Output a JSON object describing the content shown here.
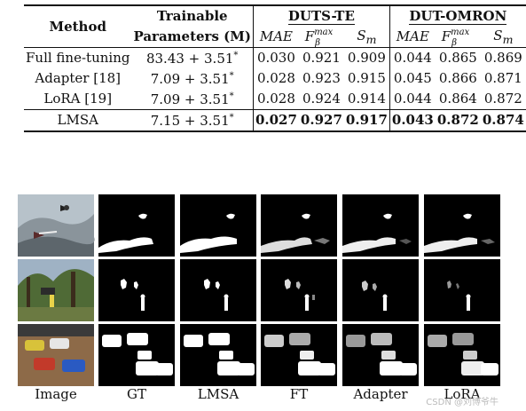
{
  "table": {
    "header": {
      "method": "Method",
      "trainable_line1": "Trainable",
      "trainable_line2": "Parameters (M)",
      "dataset1": "DUTS-TE",
      "dataset2": "DUT-OMRON",
      "mae": "MAE",
      "f_base": "F",
      "f_sup": "max",
      "f_sub": "β",
      "s_base": "S",
      "s_sub": "m"
    },
    "rows": [
      {
        "method": "Full fine-tuning",
        "params": "83.43 + 3.51",
        "star": "*",
        "d1": [
          "0.030",
          "0.921",
          "0.909"
        ],
        "d2": [
          "0.044",
          "0.865",
          "0.869"
        ]
      },
      {
        "method": "Adapter [18]",
        "params": "7.09 + 3.51",
        "star": "*",
        "d1": [
          "0.028",
          "0.923",
          "0.915"
        ],
        "d2": [
          "0.045",
          "0.866",
          "0.871"
        ]
      },
      {
        "method": "LoRA [19]",
        "params": "7.09 + 3.51",
        "star": "*",
        "d1": [
          "0.028",
          "0.924",
          "0.914"
        ],
        "d2": [
          "0.044",
          "0.864",
          "0.872"
        ]
      },
      {
        "method": "LMSA",
        "params": "7.15 + 3.51",
        "star": "*",
        "d1": [
          "0.027",
          "0.927",
          "0.917"
        ],
        "d2": [
          "0.043",
          "0.872",
          "0.874"
        ]
      }
    ]
  },
  "figure": {
    "captions": [
      "Image",
      "GT",
      "LMSA",
      "FT",
      "Adapter",
      "LoRA"
    ]
  },
  "watermark": "CSDN @刘博爷牛"
}
